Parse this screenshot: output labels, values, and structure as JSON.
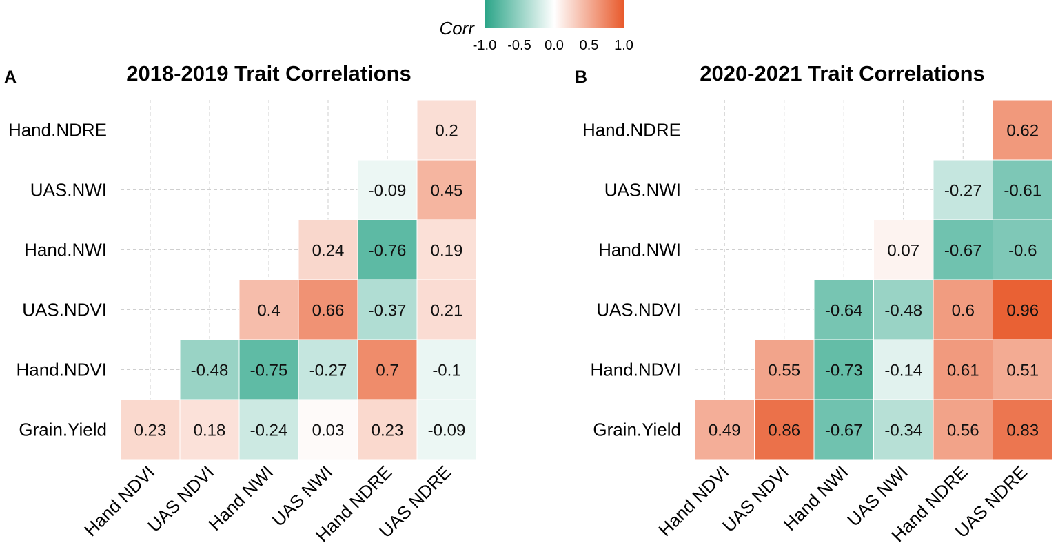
{
  "legend": {
    "title": "Corr",
    "ticks": [
      "-1.0",
      "-0.5",
      "0.0",
      "0.5",
      "1.0"
    ],
    "tick_values": [
      -1.0,
      -0.5,
      0.0,
      0.5,
      1.0
    ],
    "low_color": "#2aa487",
    "mid_color": "#ffffff",
    "high_color": "#e85a2c"
  },
  "chart_data": [
    {
      "type": "heatmap",
      "panel": "A",
      "title": "2018-2019 Trait Correlations",
      "x_labels": [
        "Hand NDVI",
        "UAS NDVI",
        "Hand NWI",
        "UAS NWI",
        "Hand NDRE",
        "UAS NDRE"
      ],
      "y_labels": [
        "Hand.NDRE",
        "UAS.NWI",
        "Hand.NWI",
        "UAS.NDVI",
        "Hand.NDVI",
        "Grain.Yield"
      ],
      "values": [
        [
          null,
          null,
          null,
          null,
          null,
          0.2
        ],
        [
          null,
          null,
          null,
          null,
          -0.09,
          0.45
        ],
        [
          null,
          null,
          null,
          0.24,
          -0.76,
          0.19
        ],
        [
          null,
          null,
          0.4,
          0.66,
          -0.37,
          0.21
        ],
        [
          null,
          -0.48,
          -0.75,
          -0.27,
          0.7,
          -0.1
        ],
        [
          0.23,
          0.18,
          -0.24,
          0.03,
          0.23,
          -0.09
        ]
      ],
      "labels": [
        [
          null,
          null,
          null,
          null,
          null,
          "0.2"
        ],
        [
          null,
          null,
          null,
          null,
          "-0.09",
          "0.45"
        ],
        [
          null,
          null,
          null,
          "0.24",
          "-0.76",
          "0.19"
        ],
        [
          null,
          null,
          "0.4",
          "0.66",
          "-0.37",
          "0.21"
        ],
        [
          null,
          "-0.48",
          "-0.75",
          "-0.27",
          "0.7",
          "-0.1"
        ],
        [
          "0.23",
          "0.18",
          "-0.24",
          "0.03",
          "0.23",
          "-0.09"
        ]
      ]
    },
    {
      "type": "heatmap",
      "panel": "B",
      "title": "2020-2021 Trait Correlations",
      "x_labels": [
        "Hand NDVI",
        "UAS NDVI",
        "Hand NWI",
        "UAS NWI",
        "Hand NDRE",
        "UAS NDRE"
      ],
      "y_labels": [
        "Hand.NDRE",
        "UAS.NWI",
        "Hand.NWI",
        "UAS.NDVI",
        "Hand.NDVI",
        "Grain.Yield"
      ],
      "values": [
        [
          null,
          null,
          null,
          null,
          null,
          0.62
        ],
        [
          null,
          null,
          null,
          null,
          -0.27,
          -0.61
        ],
        [
          null,
          null,
          null,
          0.07,
          -0.67,
          -0.6
        ],
        [
          null,
          null,
          -0.64,
          -0.48,
          0.6,
          0.96
        ],
        [
          null,
          0.55,
          -0.73,
          -0.14,
          0.61,
          0.51
        ],
        [
          0.49,
          0.86,
          -0.67,
          -0.34,
          0.56,
          0.83
        ]
      ],
      "labels": [
        [
          null,
          null,
          null,
          null,
          null,
          "0.62"
        ],
        [
          null,
          null,
          null,
          null,
          "-0.27",
          "-0.61"
        ],
        [
          null,
          null,
          null,
          "0.07",
          "-0.67",
          "-0.6"
        ],
        [
          null,
          null,
          "-0.64",
          "-0.48",
          "0.6",
          "0.96"
        ],
        [
          null,
          "0.55",
          "-0.73",
          "-0.14",
          "0.61",
          "0.51"
        ],
        [
          "0.49",
          "0.86",
          "-0.67",
          "-0.34",
          "0.56",
          "0.83"
        ]
      ]
    }
  ]
}
